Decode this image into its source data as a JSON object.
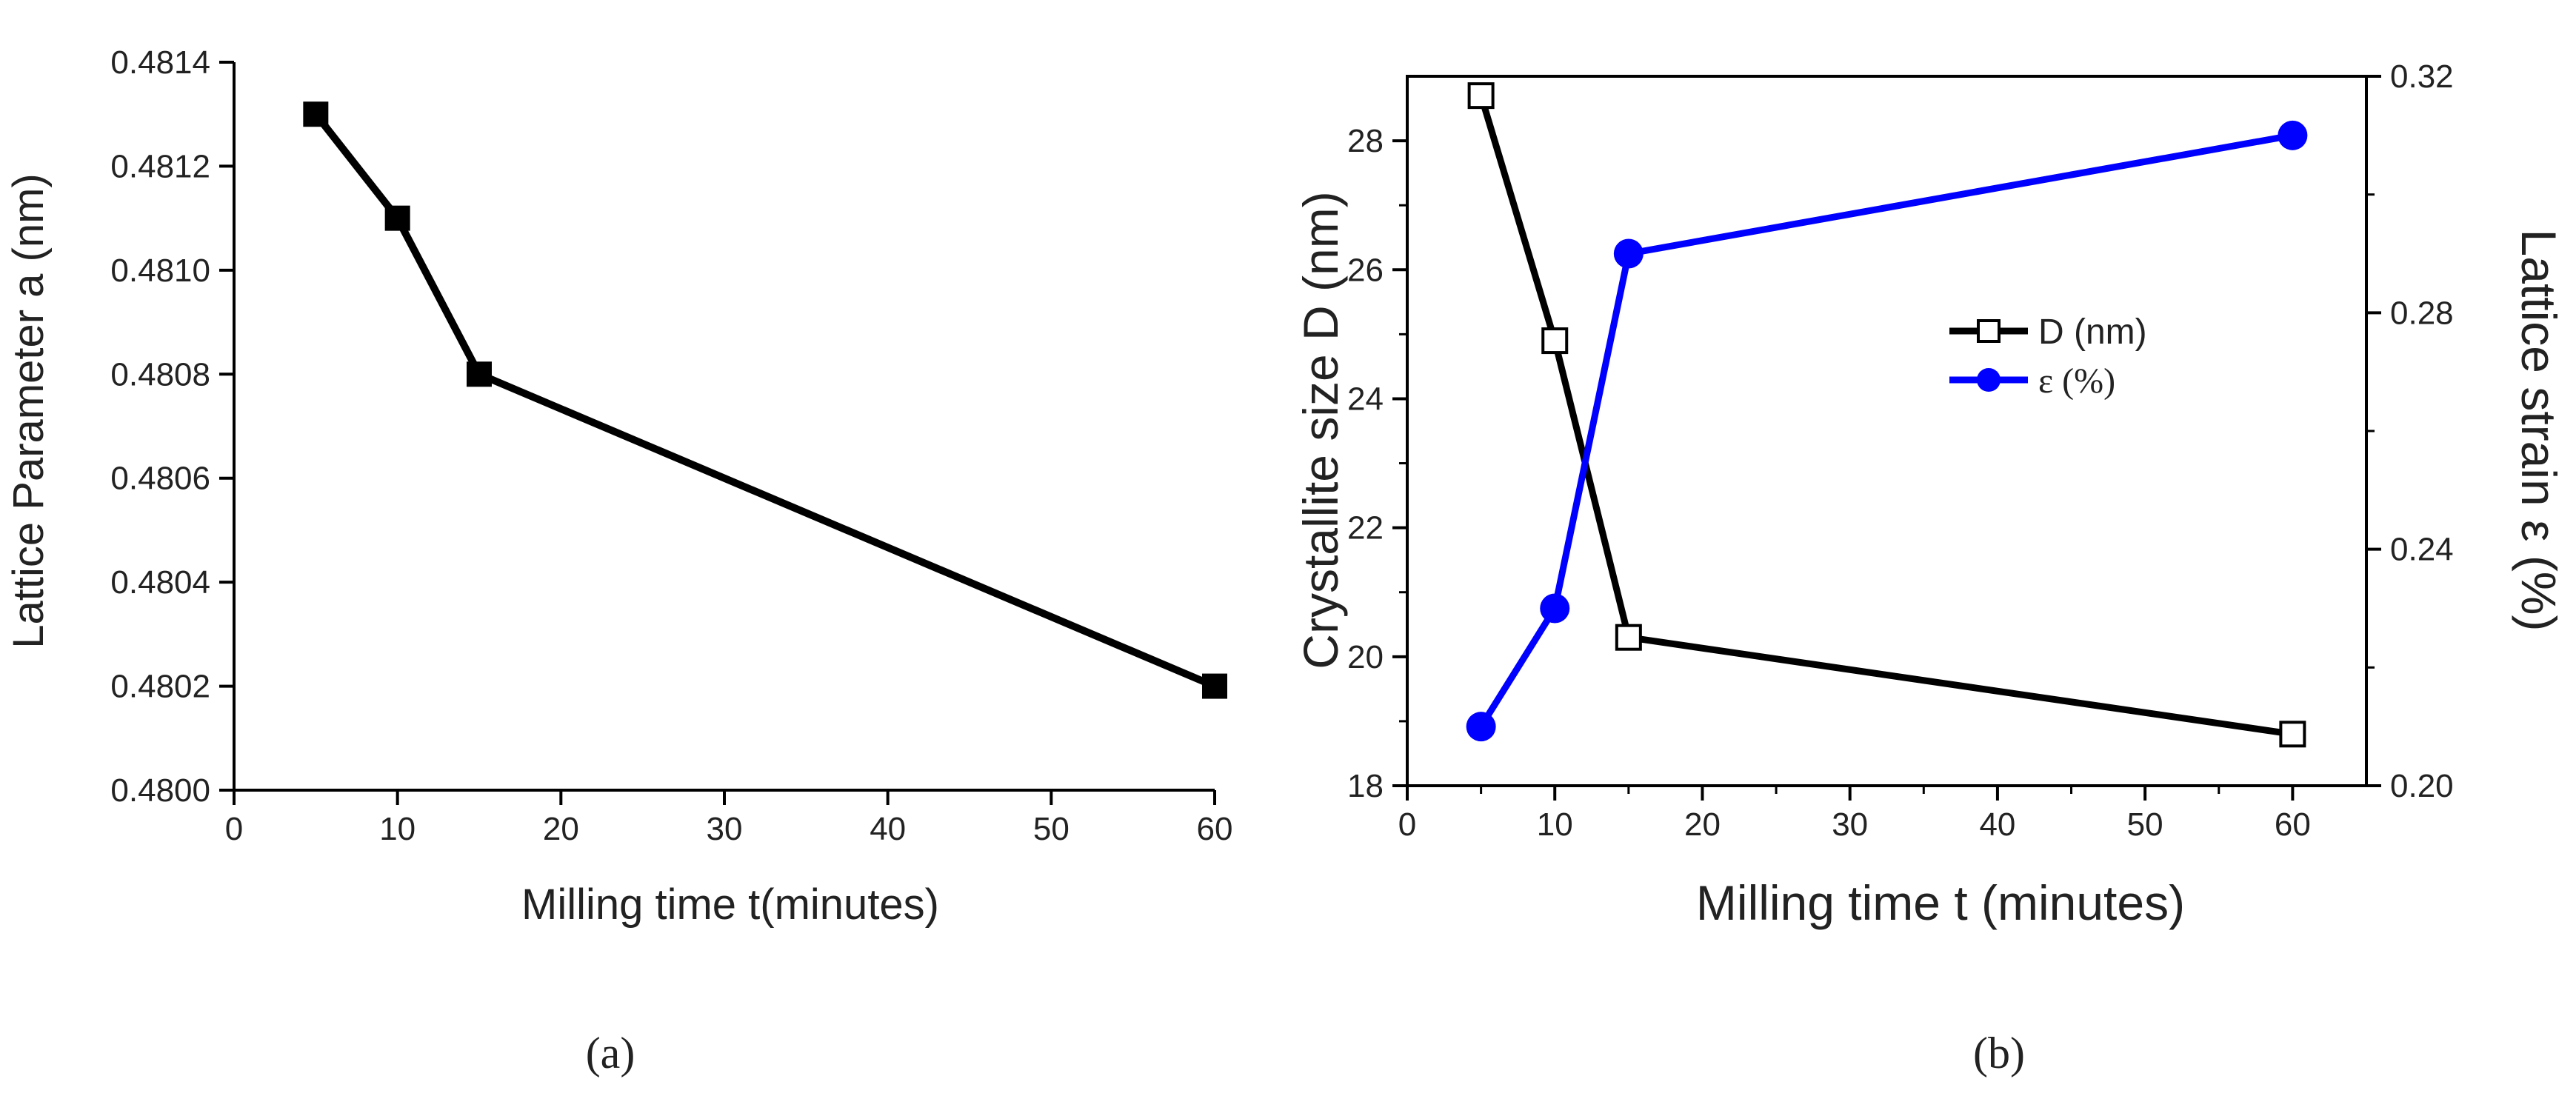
{
  "chart_data": [
    {
      "id": "a",
      "type": "line",
      "caption": "(a)",
      "xlabel": "Milling time t(minutes)",
      "ylabel": "Lattice Parameter a (nm)",
      "xlim": [
        0,
        60
      ],
      "ylim": [
        0.48,
        0.4814
      ],
      "xticks": [
        "0",
        "10",
        "20",
        "30",
        "40",
        "50",
        "60"
      ],
      "yticks": [
        "0.4800",
        "0.4802",
        "0.4804",
        "0.4806",
        "0.4808",
        "0.4810",
        "0.4812",
        "0.4814"
      ],
      "series": [
        {
          "name": "Lattice Parameter a",
          "color": "#000000",
          "marker": "filled-square",
          "x": [
            5,
            10,
            15,
            60
          ],
          "y": [
            0.4813,
            0.4811,
            0.4808,
            0.4802
          ]
        }
      ]
    },
    {
      "id": "b",
      "type": "line",
      "caption": "(b)",
      "xlabel": "Milling time t (minutes)",
      "ylabel": "Crystallite size D (nm)",
      "ylabel_right": "Lattice strain ε (%)",
      "xlim": [
        0,
        65
      ],
      "ylim": [
        18,
        29
      ],
      "ylim_right": [
        0.2,
        0.32
      ],
      "xticks": [
        "0",
        "10",
        "20",
        "30",
        "40",
        "50",
        "60"
      ],
      "yticks": [
        "18",
        "20",
        "22",
        "24",
        "26",
        "28"
      ],
      "yticks_right": [
        "0.20",
        "0.24",
        "0.28",
        "0.32"
      ],
      "legend": [
        "D (nm)",
        "ε (%)"
      ],
      "legend_position": "center-right",
      "series": [
        {
          "name": "D (nm)",
          "color": "#000000",
          "marker": "open-square",
          "axis": "left",
          "x": [
            5,
            10,
            15,
            60
          ],
          "y": [
            28.7,
            24.9,
            20.3,
            18.8
          ]
        },
        {
          "name": "ε (%)",
          "color": "#0000ff",
          "marker": "filled-circle",
          "axis": "right",
          "x": [
            5,
            10,
            15,
            60
          ],
          "y": [
            0.21,
            0.23,
            0.29,
            0.31
          ]
        }
      ]
    }
  ]
}
